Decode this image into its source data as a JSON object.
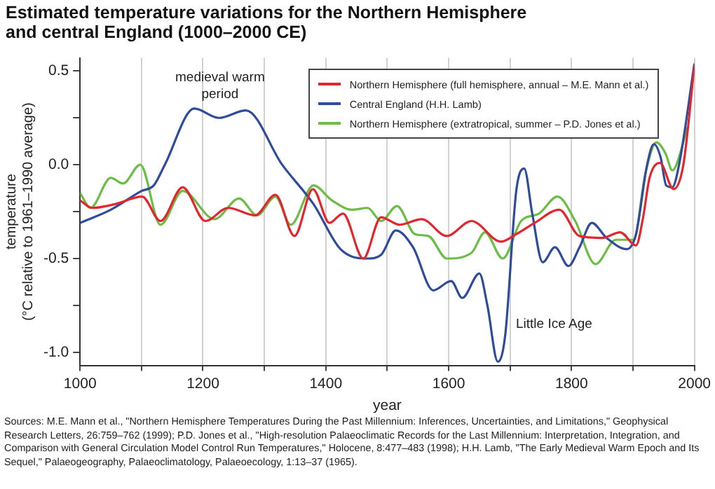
{
  "chart_data": {
    "type": "line",
    "title": "Estimated temperature variations for the Northern Hemisphere and central England (1000–2000 CE)",
    "xlabel": "year",
    "ylabel": "temperature\n(°C relative to 1961–1990 average)",
    "xlim": [
      1000,
      2000
    ],
    "xticks": [
      1000,
      {
        "value": 1100,
        "label": null
      },
      1200,
      {
        "value": 1300,
        "label": null
      },
      1400,
      {
        "value": 1500,
        "label": null
      },
      1600,
      {
        "value": 1700,
        "label": null
      },
      1800,
      {
        "value": 1900,
        "label": null
      },
      2000
    ],
    "ylim": [
      -1.07,
      0.57
    ],
    "yticks": [
      {
        "value": -1,
        "label": "-1.0"
      },
      {
        "value": -0.75,
        "label": null
      },
      -0.5,
      {
        "value": -0.25,
        "label": null
      },
      {
        "value": 0,
        "label": "0.0"
      },
      {
        "value": 0.25,
        "label": null
      },
      0.5
    ],
    "grid": "x",
    "legend": "top right",
    "marker": "none",
    "line_style": "solid",
    "series": [
      {
        "name": "Northern Hemisphere (full hemisphere, annual – M.E. Mann et al.)",
        "color": "#e3262e",
        "x": [
          1000,
          1020,
          1057,
          1101,
          1131,
          1167,
          1204,
          1241,
          1285,
          1318,
          1349,
          1379,
          1406,
          1428,
          1461,
          1490,
          1520,
          1556,
          1597,
          1637,
          1685,
          1710,
          1740,
          1780,
          1813,
          1850,
          1879,
          1905,
          1916,
          1927,
          1944,
          1966,
          1982,
          2000
        ],
        "values": [
          -0.19,
          -0.23,
          -0.21,
          -0.17,
          -0.3,
          -0.12,
          -0.3,
          -0.23,
          -0.27,
          -0.16,
          -0.38,
          -0.13,
          -0.31,
          -0.26,
          -0.5,
          -0.28,
          -0.32,
          -0.29,
          -0.38,
          -0.3,
          -0.41,
          -0.37,
          -0.31,
          -0.24,
          -0.38,
          -0.39,
          -0.36,
          -0.43,
          -0.29,
          -0.07,
          0.01,
          -0.13,
          0.0,
          0.53
        ]
      },
      {
        "name": "Central England (H.H. Lamb)",
        "color": "#2f4c9c",
        "x": [
          1000,
          1050,
          1100,
          1120,
          1138,
          1186,
          1226,
          1270,
          1329,
          1380,
          1424,
          1468,
          1490,
          1514,
          1542,
          1575,
          1604,
          1622,
          1650,
          1663,
          1680,
          1692,
          1710,
          1723,
          1736,
          1753,
          1773,
          1795,
          1813,
          1833,
          1857,
          1890,
          1905,
          1923,
          1934,
          1945,
          1954,
          1964,
          1975,
          2000
        ],
        "values": [
          -0.31,
          -0.24,
          -0.14,
          -0.11,
          0.0,
          0.3,
          0.25,
          0.29,
          0.0,
          -0.21,
          -0.45,
          -0.5,
          -0.48,
          -0.35,
          -0.44,
          -0.67,
          -0.62,
          -0.71,
          -0.58,
          -0.75,
          -1.05,
          -0.91,
          -0.14,
          -0.02,
          -0.26,
          -0.52,
          -0.44,
          -0.54,
          -0.44,
          -0.31,
          -0.39,
          -0.45,
          -0.37,
          0.0,
          0.11,
          0.04,
          -0.11,
          -0.12,
          0.0,
          0.54
        ]
      },
      {
        "name": "Northern Hemisphere (extratropical, summer – P.D. Jones et al.)",
        "color": "#6bbd45",
        "x": [
          1000,
          1017,
          1050,
          1070,
          1098,
          1131,
          1167,
          1219,
          1259,
          1288,
          1318,
          1343,
          1380,
          1410,
          1443,
          1468,
          1490,
          1516,
          1545,
          1567,
          1597,
          1637,
          1659,
          1688,
          1718,
          1747,
          1777,
          1806,
          1839,
          1872,
          1901,
          1920,
          1938,
          1953,
          1964,
          1989
        ],
        "values": [
          -0.15,
          -0.23,
          -0.07,
          -0.1,
          0.0,
          -0.32,
          -0.14,
          -0.29,
          -0.18,
          -0.27,
          -0.17,
          -0.32,
          -0.11,
          -0.19,
          -0.24,
          -0.23,
          -0.3,
          -0.22,
          -0.37,
          -0.38,
          -0.5,
          -0.47,
          -0.36,
          -0.5,
          -0.3,
          -0.26,
          -0.17,
          -0.3,
          -0.53,
          -0.4,
          -0.4,
          -0.05,
          0.12,
          0.06,
          -0.03,
          0.2
        ]
      }
    ],
    "annotations": [
      "medieval warm\nperiod",
      "Little Ice Age",
      "Sources: M.E. Mann et al., \"Northern Hemisphere Temperatures During the Past Millennium: Inferences, Uncertainties, and Limitations,\" Geophysical Research Letters, 26:759–762 (1999); P.D. Jones et al., \"High-resolution Palaeoclimatic Records for the Last Millennium: Interpretation, Integration, and Comparison with General Circulation Model Control Run Temperatures,\" Holocene, 8:477–483 (1998); H.H. Lamb, \"The Early Medieval Warm Epoch and Its Sequel,\" Palaeogeography, Palaeoclimatology, Palaeoecology, 1:13–37 (1965)."
    ]
  }
}
